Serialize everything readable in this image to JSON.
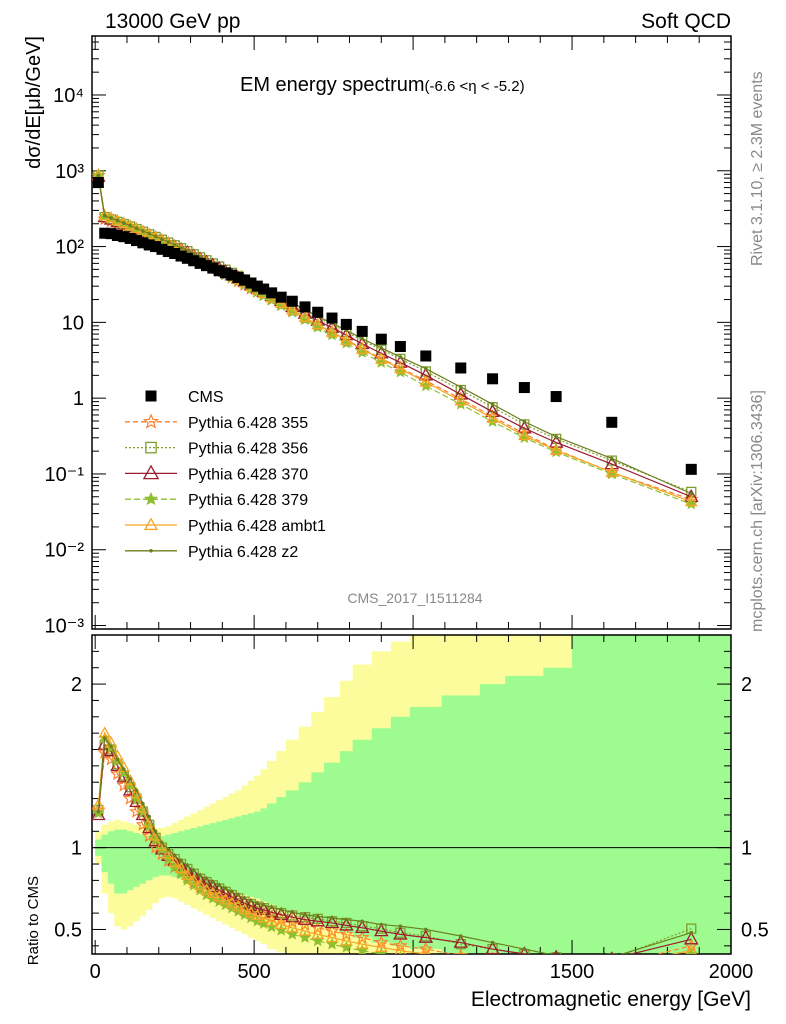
{
  "header": {
    "left": "13000 GeV pp",
    "right": "Soft QCD"
  },
  "side": {
    "rivet": "Rivet 3.1.10, ≥ 2.3M events",
    "mcplots": "mcplots.cern.ch [arXiv:1306.3436]"
  },
  "analysis_id": "CMS_2017_I1511284",
  "colors": {
    "cms": "#000000",
    "p355": "#ff7f2a",
    "p356": "#7f9f2f",
    "p370": "#9b1b30",
    "p379": "#8fbf2f",
    "ambt1": "#f5a623",
    "z2": "#6b7f1f",
    "band_green": "#9dfb8f",
    "band_yellow": "#fcfc9c"
  },
  "chart_data": [
    {
      "type": "scatter",
      "title": "EM energy spectrum",
      "title_suffix": "(-6.6 <η < -5.2)",
      "ylabel": "dσ/dE[μb/GeV]",
      "xlim": [
        -10,
        2000
      ],
      "ylim": [
        0.0009,
        60000
      ],
      "yscale": "log",
      "yticks": [
        "10⁻³",
        "10⁻²",
        "10⁻¹",
        "1",
        "10",
        "10²",
        "10³",
        "10⁴"
      ],
      "legend_position": "left",
      "x": [
        10,
        30,
        50,
        70,
        90,
        110,
        130,
        150,
        170,
        190,
        210,
        230,
        250,
        270,
        290,
        310,
        330,
        350,
        370,
        390,
        410,
        430,
        450,
        470,
        490,
        510,
        530,
        555,
        585,
        620,
        660,
        700,
        745,
        790,
        840,
        900,
        960,
        1040,
        1150,
        1250,
        1350,
        1450,
        1625,
        1875
      ],
      "series": [
        {
          "name": "CMS",
          "key": "cms",
          "values": [
            700,
            150,
            148,
            140,
            135,
            128,
            120,
            112,
            105,
            100,
            92,
            86,
            81,
            75,
            70,
            65,
            60,
            56,
            52,
            48,
            45,
            42,
            39,
            36,
            33,
            30,
            27.5,
            24.5,
            21.5,
            19,
            16,
            13.6,
            11.4,
            9.4,
            7.6,
            6.0,
            4.8,
            3.6,
            2.5,
            1.8,
            1.38,
            1.05,
            0.48,
            0.115
          ]
        },
        {
          "name": "Pythia 6.428 355",
          "key": "p355",
          "values": [
            860,
            230,
            215,
            200,
            186,
            172,
            160,
            147,
            135,
            124,
            113,
            103,
            94,
            86,
            78,
            71,
            64,
            58,
            52.5,
            47.5,
            43,
            39,
            35,
            31.5,
            28,
            25.5,
            23,
            20.2,
            17.3,
            14.3,
            11.5,
            9.3,
            7.5,
            5.9,
            4.5,
            3.35,
            2.5,
            1.7,
            0.98,
            0.57,
            0.34,
            0.21,
            0.105,
            0.046
          ]
        },
        {
          "name": "Pythia 6.428 356",
          "key": "p356",
          "values": [
            860,
            245,
            228,
            212,
            198,
            184,
            170,
            157,
            145,
            134,
            123,
            113,
            104,
            95,
            87,
            79,
            72,
            66,
            60,
            54.5,
            49.5,
            45,
            41,
            37,
            33.5,
            30.5,
            27.5,
            24.3,
            21,
            17.6,
            14.3,
            11.6,
            9.4,
            7.5,
            5.8,
            4.35,
            3.3,
            2.25,
            1.28,
            0.76,
            0.45,
            0.29,
            0.15,
            0.058
          ]
        },
        {
          "name": "Pythia 6.428 370",
          "key": "p370",
          "values": [
            840,
            245,
            228,
            210,
            195,
            180,
            166,
            153,
            140,
            129,
            118,
            108,
            99,
            91,
            83,
            75,
            68,
            62,
            56.5,
            51,
            46.5,
            42,
            38,
            34.5,
            31,
            28,
            25.3,
            22.3,
            19.2,
            16,
            13,
            10.5,
            8.5,
            6.8,
            5.2,
            3.9,
            2.95,
            2.0,
            1.12,
            0.66,
            0.4,
            0.26,
            0.135,
            0.05
          ]
        },
        {
          "name": "Pythia 6.428 379",
          "key": "p379",
          "values": [
            850,
            250,
            232,
            214,
            198,
            182,
            167,
            153,
            140,
            128,
            117,
            106,
            96,
            87,
            79,
            71,
            64,
            58,
            52,
            47,
            42.5,
            38.5,
            34.5,
            31,
            28,
            25,
            22.5,
            19.6,
            16.6,
            13.6,
            10.8,
            8.6,
            6.8,
            5.3,
            4.0,
            2.95,
            2.2,
            1.45,
            0.83,
            0.49,
            0.3,
            0.195,
            0.1,
            0.04
          ]
        },
        {
          "name": "Pythia 6.428 ambt1",
          "key": "ambt1",
          "values": [
            880,
            255,
            238,
            220,
            203,
            187,
            172,
            158,
            145,
            133,
            121,
            110,
            100,
            91,
            82.5,
            74.5,
            67.5,
            61,
            55,
            49.5,
            45,
            40.5,
            36.5,
            33,
            29.5,
            26.5,
            24,
            21,
            17.8,
            14.6,
            11.6,
            9.3,
            7.4,
            5.8,
            4.4,
            3.25,
            2.45,
            1.62,
            0.92,
            0.54,
            0.32,
            0.205,
            0.105,
            0.043
          ]
        },
        {
          "name": "Pythia 6.428 z2",
          "key": "z2",
          "values": [
            860,
            255,
            238,
            220,
            204,
            189,
            174,
            160,
            148,
            136,
            125,
            115,
            105,
            96,
            88,
            80,
            73,
            66.5,
            60.5,
            55,
            50,
            45.5,
            41.5,
            37.5,
            34,
            31,
            28,
            25,
            21.5,
            18,
            14.8,
            12,
            9.8,
            7.9,
            6.1,
            4.6,
            3.5,
            2.45,
            1.4,
            0.83,
            0.49,
            0.31,
            0.16,
            0.055
          ]
        }
      ]
    },
    {
      "type": "line",
      "ylabel": "Ratio to CMS",
      "xlabel": "Electromagnetic energy [GeV]",
      "xlim": [
        -10,
        2000
      ],
      "ylim": [
        0.35,
        2.3
      ],
      "xticks": [
        0,
        500,
        1000,
        1500,
        2000
      ],
      "yticks": [
        0.5,
        1,
        2
      ],
      "x": [
        10,
        30,
        50,
        70,
        90,
        110,
        130,
        150,
        170,
        190,
        210,
        230,
        250,
        270,
        290,
        310,
        330,
        350,
        370,
        390,
        410,
        430,
        450,
        470,
        490,
        510,
        530,
        555,
        585,
        620,
        660,
        700,
        745,
        790,
        840,
        900,
        960,
        1040,
        1150,
        1250,
        1350,
        1450,
        1625,
        1875
      ],
      "band_edges": [
        0,
        20,
        40,
        60,
        80,
        100,
        120,
        140,
        160,
        180,
        200,
        220,
        240,
        260,
        280,
        300,
        320,
        340,
        360,
        380,
        400,
        420,
        440,
        460,
        480,
        500,
        520,
        540,
        570,
        600,
        640,
        680,
        720,
        770,
        810,
        870,
        930,
        990,
        1090,
        1210,
        1290,
        1410,
        1500,
        1750,
        2000
      ],
      "band_green_hi": [
        1.05,
        1.08,
        1.1,
        1.11,
        1.11,
        1.1,
        1.09,
        1.08,
        1.07,
        1.07,
        1.07,
        1.08,
        1.09,
        1.1,
        1.11,
        1.12,
        1.13,
        1.14,
        1.15,
        1.16,
        1.17,
        1.18,
        1.19,
        1.2,
        1.21,
        1.22,
        1.24,
        1.27,
        1.31,
        1.35,
        1.4,
        1.46,
        1.52,
        1.59,
        1.66,
        1.73,
        1.8,
        1.86,
        1.93,
        2.0,
        2.05,
        2.1,
        2.3,
        2.3
      ],
      "band_green_lo": [
        0.95,
        0.85,
        0.78,
        0.72,
        0.72,
        0.74,
        0.76,
        0.78,
        0.8,
        0.82,
        0.83,
        0.83,
        0.82,
        0.81,
        0.8,
        0.79,
        0.78,
        0.77,
        0.76,
        0.75,
        0.74,
        0.73,
        0.72,
        0.71,
        0.7,
        0.69,
        0.67,
        0.65,
        0.62,
        0.6,
        0.57,
        0.54,
        0.51,
        0.48,
        0.45,
        0.42,
        0.4,
        0.38,
        0.35,
        0.35,
        0.35,
        0.35,
        0.35,
        0.35
      ],
      "band_yellow_hi": [
        1.1,
        1.14,
        1.16,
        1.17,
        1.16,
        1.15,
        1.14,
        1.13,
        1.12,
        1.12,
        1.12,
        1.13,
        1.15,
        1.17,
        1.19,
        1.21,
        1.23,
        1.25,
        1.27,
        1.29,
        1.31,
        1.33,
        1.35,
        1.38,
        1.41,
        1.44,
        1.48,
        1.53,
        1.59,
        1.66,
        1.74,
        1.83,
        1.92,
        2.02,
        2.12,
        2.2,
        2.26,
        2.3,
        2.3,
        2.3,
        2.3,
        2.3,
        2.3,
        2.3
      ],
      "band_yellow_lo": [
        0.9,
        0.72,
        0.6,
        0.52,
        0.5,
        0.52,
        0.55,
        0.58,
        0.62,
        0.66,
        0.69,
        0.7,
        0.69,
        0.67,
        0.65,
        0.63,
        0.61,
        0.59,
        0.57,
        0.55,
        0.53,
        0.51,
        0.49,
        0.47,
        0.45,
        0.43,
        0.41,
        0.38,
        0.36,
        0.35,
        0.35,
        0.35,
        0.35,
        0.35,
        0.35,
        0.35,
        0.35,
        0.35,
        0.35,
        0.35,
        0.35,
        0.35,
        0.35,
        0.35
      ],
      "series": [
        {
          "name": "Pythia 6.428 355",
          "key": "p355",
          "values": [
            1.23,
            1.58,
            1.54,
            1.45,
            1.38,
            1.3,
            1.22,
            1.14,
            1.07,
            1.0,
            0.96,
            0.92,
            0.88,
            0.85,
            0.82,
            0.79,
            0.76,
            0.74,
            0.72,
            0.7,
            0.68,
            0.66,
            0.64,
            0.62,
            0.61,
            0.6,
            0.59,
            0.575,
            0.56,
            0.545,
            0.53,
            0.51,
            0.49,
            0.47,
            0.45,
            0.42,
            0.4,
            0.38,
            0.34,
            0.32,
            0.3,
            0.28,
            0.28,
            0.4
          ]
        },
        {
          "name": "Pythia 6.428 356",
          "key": "p356",
          "values": [
            1.23,
            1.63,
            1.6,
            1.51,
            1.44,
            1.37,
            1.3,
            1.22,
            1.14,
            1.06,
            1.0,
            0.96,
            0.93,
            0.9,
            0.87,
            0.84,
            0.81,
            0.79,
            0.77,
            0.75,
            0.73,
            0.71,
            0.69,
            0.67,
            0.655,
            0.64,
            0.63,
            0.615,
            0.6,
            0.585,
            0.575,
            0.565,
            0.55,
            0.54,
            0.52,
            0.505,
            0.48,
            0.46,
            0.41,
            0.38,
            0.35,
            0.33,
            0.32,
            0.505
          ]
        },
        {
          "name": "Pythia 6.428 370",
          "key": "p370",
          "values": [
            1.2,
            1.63,
            1.59,
            1.5,
            1.43,
            1.35,
            1.28,
            1.2,
            1.12,
            1.04,
            0.99,
            0.95,
            0.92,
            0.89,
            0.86,
            0.83,
            0.8,
            0.78,
            0.76,
            0.74,
            0.72,
            0.7,
            0.68,
            0.66,
            0.645,
            0.63,
            0.62,
            0.605,
            0.59,
            0.575,
            0.56,
            0.55,
            0.54,
            0.525,
            0.51,
            0.49,
            0.47,
            0.45,
            0.42,
            0.38,
            0.35,
            0.33,
            0.32,
            0.44
          ]
        },
        {
          "name": "Pythia 6.428 379",
          "key": "p379",
          "values": [
            1.21,
            1.67,
            1.61,
            1.53,
            1.46,
            1.38,
            1.3,
            1.22,
            1.13,
            1.05,
            0.99,
            0.93,
            0.88,
            0.84,
            0.8,
            0.77,
            0.74,
            0.71,
            0.69,
            0.67,
            0.65,
            0.63,
            0.61,
            0.59,
            0.57,
            0.55,
            0.535,
            0.515,
            0.495,
            0.47,
            0.45,
            0.43,
            0.41,
            0.39,
            0.37,
            0.35,
            0.33,
            0.31,
            0.3,
            0.29,
            0.28,
            0.27,
            0.27,
            0.35
          ]
        },
        {
          "name": "Pythia 6.428 ambt1",
          "key": "ambt1",
          "values": [
            1.26,
            1.7,
            1.64,
            1.56,
            1.49,
            1.41,
            1.33,
            1.24,
            1.15,
            1.07,
            1.01,
            0.96,
            0.91,
            0.87,
            0.83,
            0.8,
            0.77,
            0.74,
            0.72,
            0.7,
            0.68,
            0.66,
            0.64,
            0.62,
            0.6,
            0.585,
            0.57,
            0.55,
            0.53,
            0.51,
            0.49,
            0.47,
            0.45,
            0.43,
            0.41,
            0.39,
            0.37,
            0.35,
            0.33,
            0.31,
            0.3,
            0.28,
            0.28,
            0.37
          ]
        },
        {
          "name": "Pythia 6.428 z2",
          "key": "z2",
          "values": [
            1.22,
            1.67,
            1.62,
            1.54,
            1.48,
            1.42,
            1.35,
            1.27,
            1.19,
            1.1,
            1.03,
            0.99,
            0.95,
            0.92,
            0.89,
            0.86,
            0.83,
            0.81,
            0.79,
            0.77,
            0.75,
            0.73,
            0.71,
            0.69,
            0.675,
            0.66,
            0.65,
            0.635,
            0.62,
            0.605,
            0.59,
            0.58,
            0.57,
            0.56,
            0.55,
            0.53,
            0.52,
            0.5,
            0.46,
            0.42,
            0.38,
            0.34,
            0.33,
            0.48
          ]
        }
      ]
    }
  ]
}
